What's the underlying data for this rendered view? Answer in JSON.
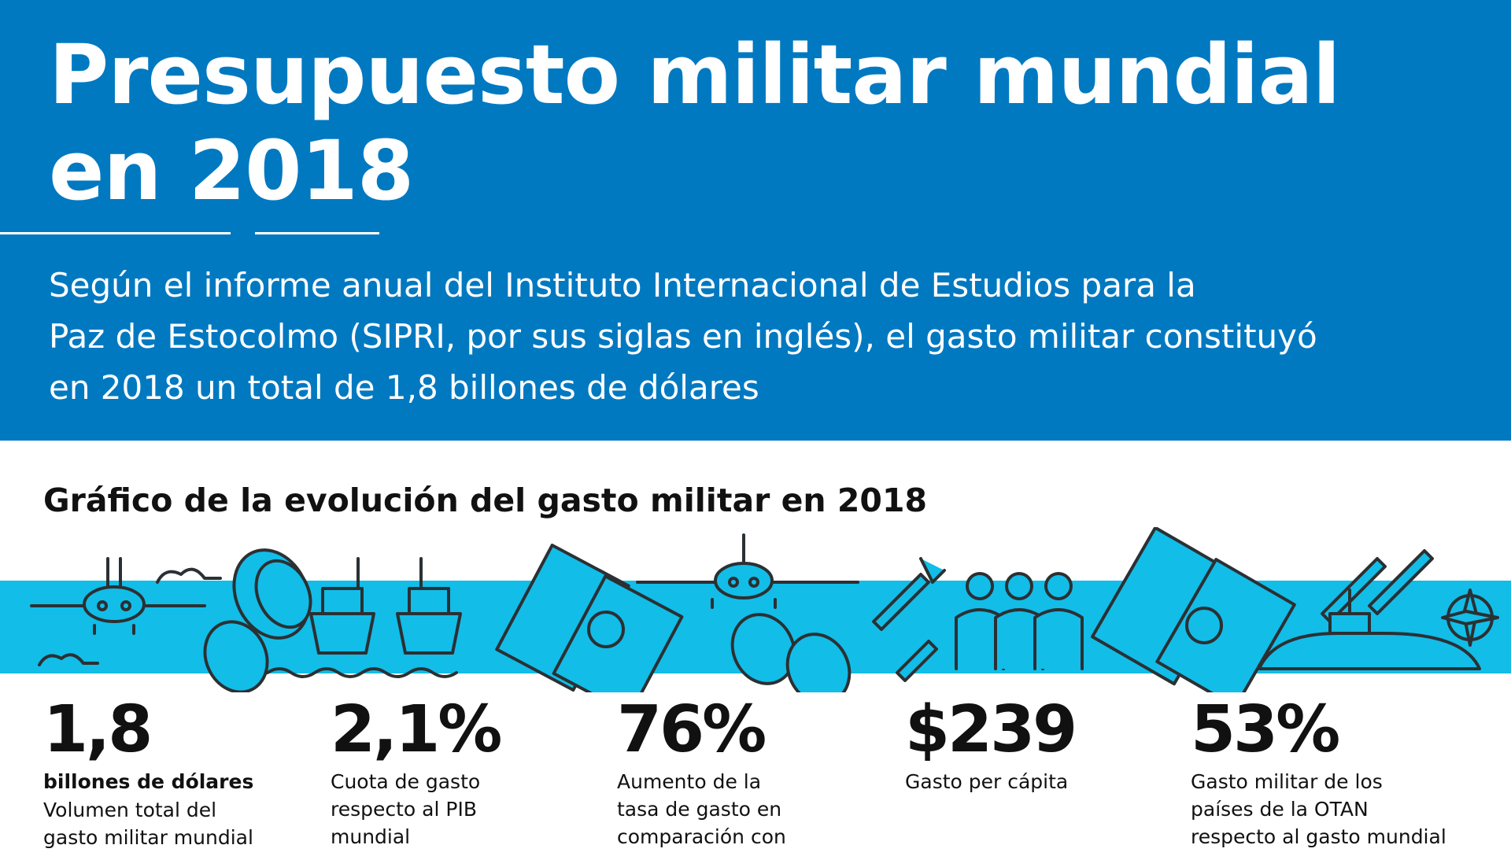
{
  "title_line1": "Presupuesto militar mundial",
  "title_line2": "en 2018",
  "intro": {
    "line1": "Según el informe anual del Instituto Internacional de Estudios para la",
    "line2": "Paz de Estocolmo (SIPRI, por sus siglas en inglés), el gasto militar constituyó",
    "line3": "en 2018 un total de 1,8 billones de dólares"
  },
  "chart_heading": "Gráfico de la evolución del gasto militar en 2018",
  "colors": {
    "header_bg": "#0179c1",
    "band": "#12bde8",
    "ink": "#2b3033"
  },
  "icons": [
    "airplane-icon",
    "coin-icon",
    "ship-icon",
    "banknote-icon",
    "missile-icon",
    "people-icon",
    "submarine-icon",
    "nato-compass-icon"
  ],
  "stats": [
    {
      "value": "1,8",
      "unit": "billones de dólares",
      "desc": [
        "Volumen total del",
        "gasto militar mundial"
      ]
    },
    {
      "value": "2,1%",
      "unit": "",
      "desc": [
        "Cuota de gasto",
        "respecto al PIB",
        "mundial"
      ]
    },
    {
      "value": "76%",
      "unit": "",
      "desc": [
        "Aumento de la",
        "tasa de gasto en",
        "comparación con"
      ]
    },
    {
      "value": "$239",
      "unit": "",
      "desc": [
        "Gasto per cápita"
      ]
    },
    {
      "value": "53%",
      "unit": "",
      "desc": [
        "Gasto militar de los",
        "países de la OTAN",
        "respecto al gasto mundial"
      ]
    }
  ]
}
